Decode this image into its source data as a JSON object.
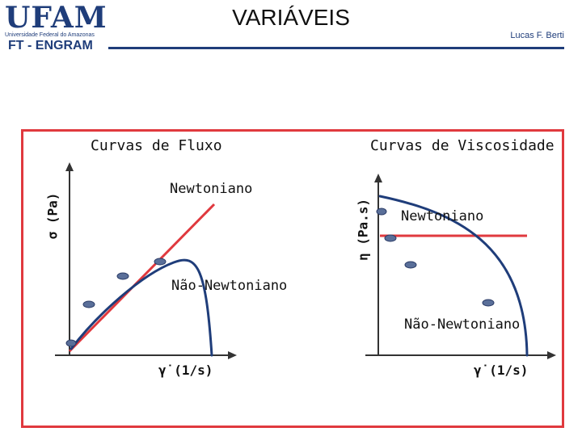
{
  "header": {
    "logo": "UFAM",
    "logo_sub": "Universidade Federal do Amazonas",
    "dept": "FT - ENGRAM",
    "title": "VARIÁVEIS",
    "author": "Lucas F. Berti"
  },
  "left_panel": {
    "heading": "Curvas de Fluxo",
    "y_axis": "σ (Pa)",
    "x_axis": "γ̇ (1/s)",
    "newtonian": "Newtoniano",
    "non_newtonian": "Não-Newtoniano"
  },
  "right_panel": {
    "heading": "Curvas de Viscosidade",
    "y_axis": "η (Pa.s)",
    "x_axis": "γ̇ (1/s)",
    "newtonian": "Newtoniano",
    "non_newtonian": "Não-Newtoniano"
  },
  "colors": {
    "brand": "#1f3d7a",
    "frame": "#e0393e",
    "newtonian_line": "#e0393e",
    "curve": "#1f3d7a",
    "marker": "#5a6f99"
  }
}
